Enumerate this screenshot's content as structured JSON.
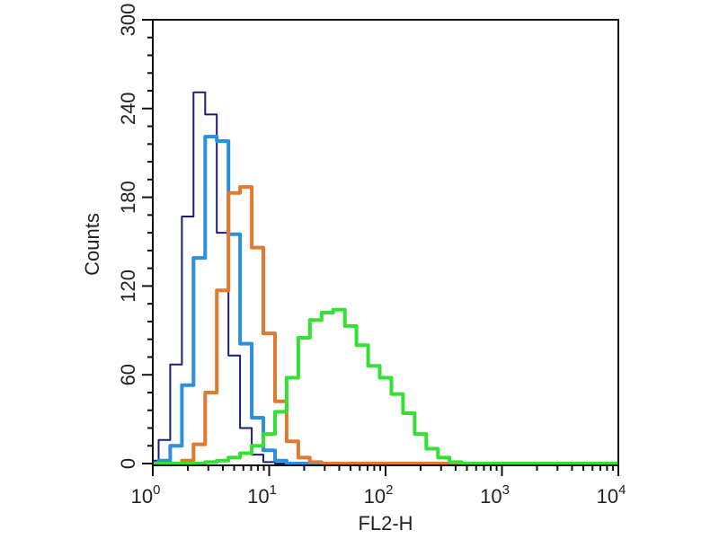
{
  "chart_data": {
    "type": "line",
    "title": "",
    "xlabel": "FL2-H",
    "ylabel": "Counts",
    "xscale": "log",
    "xlim_log10": [
      0,
      4
    ],
    "ylim": [
      0,
      300
    ],
    "yticks": [
      "0",
      "60",
      "120",
      "180",
      "240",
      "300"
    ],
    "ytick_values": [
      0,
      60,
      120,
      180,
      240,
      300
    ],
    "xticks": [
      {
        "base": "10",
        "exp": "0",
        "log10": 0
      },
      {
        "base": "10",
        "exp": "1",
        "log10": 1
      },
      {
        "base": "10",
        "exp": "2",
        "log10": 2
      },
      {
        "base": "10",
        "exp": "3",
        "log10": 3
      },
      {
        "base": "10",
        "exp": "4",
        "log10": 4
      }
    ],
    "grid": false,
    "legend": "none",
    "x_log10": [
      0.0,
      0.1,
      0.2,
      0.3,
      0.4,
      0.5,
      0.6,
      0.7,
      0.8,
      0.9,
      1.0,
      1.1,
      1.2,
      1.3,
      1.4,
      1.5,
      1.6,
      1.7,
      1.8,
      1.9,
      2.0,
      2.1,
      2.2,
      2.3,
      2.4,
      2.5,
      2.6,
      2.7,
      2.8,
      2.9,
      3.0,
      3.1,
      3.2,
      3.3,
      3.4,
      3.5,
      3.6,
      3.7,
      3.8,
      3.9,
      4.0
    ],
    "series": [
      {
        "name": "navy",
        "color": "#1c1c7a",
        "values": [
          2,
          16,
          67,
          167,
          251,
          236,
          156,
          73,
          24,
          6,
          1,
          0,
          0,
          0,
          0,
          0,
          0,
          0,
          0,
          0,
          0,
          0,
          0,
          0,
          0,
          0,
          0,
          0,
          0,
          0,
          0,
          0,
          0,
          0,
          0,
          0,
          0,
          0,
          0,
          0,
          0
        ]
      },
      {
        "name": "blue",
        "color": "#2b8fdc",
        "values": [
          0,
          2,
          12,
          53,
          139,
          221,
          218,
          155,
          81,
          31,
          9,
          2,
          0,
          0,
          0,
          0,
          0,
          0,
          0,
          0,
          0,
          0,
          0,
          0,
          0,
          0,
          0,
          0,
          0,
          0,
          0,
          0,
          0,
          0,
          0,
          0,
          0,
          0,
          0,
          0,
          0
        ]
      },
      {
        "name": "orange",
        "color": "#e07a2e",
        "values": [
          0,
          0,
          0,
          2,
          13,
          48,
          117,
          183,
          187,
          146,
          88,
          42,
          15,
          4,
          1,
          0,
          0,
          0,
          0,
          0,
          0,
          0,
          0,
          0,
          0,
          0,
          0,
          0,
          0,
          0,
          0,
          0,
          0,
          0,
          0,
          0,
          0,
          0,
          0,
          0,
          0
        ]
      },
      {
        "name": "green",
        "color": "#35e035",
        "values": [
          0,
          0,
          0,
          0,
          0,
          1,
          2,
          4,
          7,
          12,
          20,
          35,
          58,
          85,
          97,
          102,
          104,
          93,
          80,
          66,
          58,
          47,
          34,
          20,
          10,
          4,
          1,
          0,
          0,
          0,
          0,
          0,
          0,
          0,
          0,
          0,
          0,
          0,
          0,
          0,
          0
        ]
      }
    ]
  }
}
